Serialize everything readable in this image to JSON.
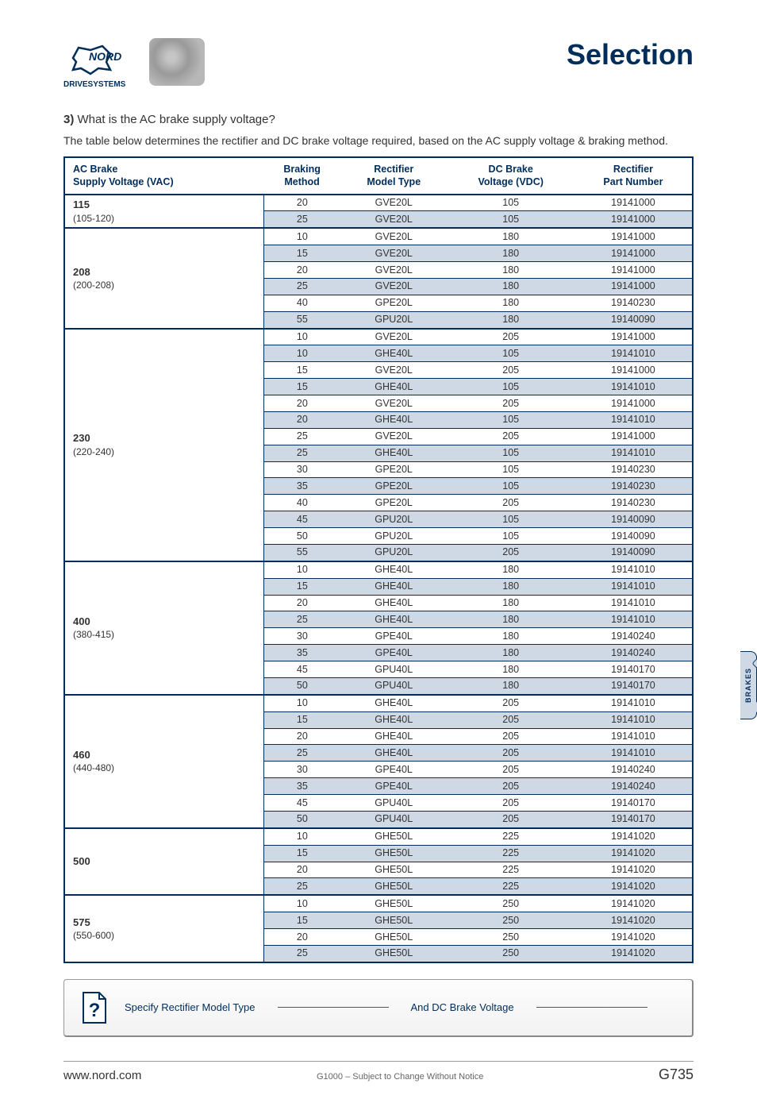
{
  "title": "Selection",
  "logo_caption": "DRIVESYSTEMS",
  "question_num": "3)",
  "question_text": "What is the AC brake supply voltage?",
  "intro": "The table below determines the rectifier and DC brake voltage required, based on the AC supply voltage & braking method.",
  "side_tab": "BRAKES",
  "columns": [
    "AC Brake\nSupply Voltage (VAC)",
    "Braking\nMethod",
    "Rectifier\nModel Type",
    "DC Brake\nVoltage (VDC)",
    "Rectifier\nPart Number"
  ],
  "groups": [
    {
      "main": "115",
      "sub": "(105-120)",
      "rows": [
        [
          "20",
          "GVE20L",
          "105",
          "19141000"
        ],
        [
          "25",
          "GVE20L",
          "105",
          "19141000"
        ]
      ]
    },
    {
      "main": "208",
      "sub": "(200-208)",
      "rows": [
        [
          "10",
          "GVE20L",
          "180",
          "19141000"
        ],
        [
          "15",
          "GVE20L",
          "180",
          "19141000"
        ],
        [
          "20",
          "GVE20L",
          "180",
          "19141000"
        ],
        [
          "25",
          "GVE20L",
          "180",
          "19141000"
        ],
        [
          "40",
          "GPE20L",
          "180",
          "19140230"
        ],
        [
          "55",
          "GPU20L",
          "180",
          "19140090"
        ]
      ]
    },
    {
      "main": "230",
      "sub": "(220-240)",
      "rows": [
        [
          "10",
          "GVE20L",
          "205",
          "19141000"
        ],
        [
          "10",
          "GHE40L",
          "105",
          "19141010"
        ],
        [
          "15",
          "GVE20L",
          "205",
          "19141000"
        ],
        [
          "15",
          "GHE40L",
          "105",
          "19141010"
        ],
        [
          "20",
          "GVE20L",
          "205",
          "19141000"
        ],
        [
          "20",
          "GHE40L",
          "105",
          "19141010"
        ],
        [
          "25",
          "GVE20L",
          "205",
          "19141000"
        ],
        [
          "25",
          "GHE40L",
          "105",
          "19141010"
        ],
        [
          "30",
          "GPE20L",
          "105",
          "19140230"
        ],
        [
          "35",
          "GPE20L",
          "105",
          "19140230"
        ],
        [
          "40",
          "GPE20L",
          "205",
          "19140230"
        ],
        [
          "45",
          "GPU20L",
          "105",
          "19140090"
        ],
        [
          "50",
          "GPU20L",
          "105",
          "19140090"
        ],
        [
          "55",
          "GPU20L",
          "205",
          "19140090"
        ]
      ]
    },
    {
      "main": "400",
      "sub": "(380-415)",
      "rows": [
        [
          "10",
          "GHE40L",
          "180",
          "19141010"
        ],
        [
          "15",
          "GHE40L",
          "180",
          "19141010"
        ],
        [
          "20",
          "GHE40L",
          "180",
          "19141010"
        ],
        [
          "25",
          "GHE40L",
          "180",
          "19141010"
        ],
        [
          "30",
          "GPE40L",
          "180",
          "19140240"
        ],
        [
          "35",
          "GPE40L",
          "180",
          "19140240"
        ],
        [
          "45",
          "GPU40L",
          "180",
          "19140170"
        ],
        [
          "50",
          "GPU40L",
          "180",
          "19140170"
        ]
      ]
    },
    {
      "main": "460",
      "sub": "(440-480)",
      "rows": [
        [
          "10",
          "GHE40L",
          "205",
          "19141010"
        ],
        [
          "15",
          "GHE40L",
          "205",
          "19141010"
        ],
        [
          "20",
          "GHE40L",
          "205",
          "19141010"
        ],
        [
          "25",
          "GHE40L",
          "205",
          "19141010"
        ],
        [
          "30",
          "GPE40L",
          "205",
          "19140240"
        ],
        [
          "35",
          "GPE40L",
          "205",
          "19140240"
        ],
        [
          "45",
          "GPU40L",
          "205",
          "19140170"
        ],
        [
          "50",
          "GPU40L",
          "205",
          "19140170"
        ]
      ]
    },
    {
      "main": "500",
      "sub": "",
      "rows": [
        [
          "10",
          "GHE50L",
          "225",
          "19141020"
        ],
        [
          "15",
          "GHE50L",
          "225",
          "19141020"
        ],
        [
          "20",
          "GHE50L",
          "225",
          "19141020"
        ],
        [
          "25",
          "GHE50L",
          "225",
          "19141020"
        ]
      ]
    },
    {
      "main": "575",
      "sub": "(550-600)",
      "rows": [
        [
          "10",
          "GHE50L",
          "250",
          "19141020"
        ],
        [
          "15",
          "GHE50L",
          "250",
          "19141020"
        ],
        [
          "20",
          "GHE50L",
          "250",
          "19141020"
        ],
        [
          "25",
          "GHE50L",
          "250",
          "19141020"
        ]
      ]
    }
  ],
  "specify": {
    "a": "Specify Rectifier Model Type",
    "b": "And DC Brake Voltage"
  },
  "footer": {
    "site": "www.nord.com",
    "mid": "G1000 – Subject to Change Without Notice",
    "page": "G735"
  }
}
